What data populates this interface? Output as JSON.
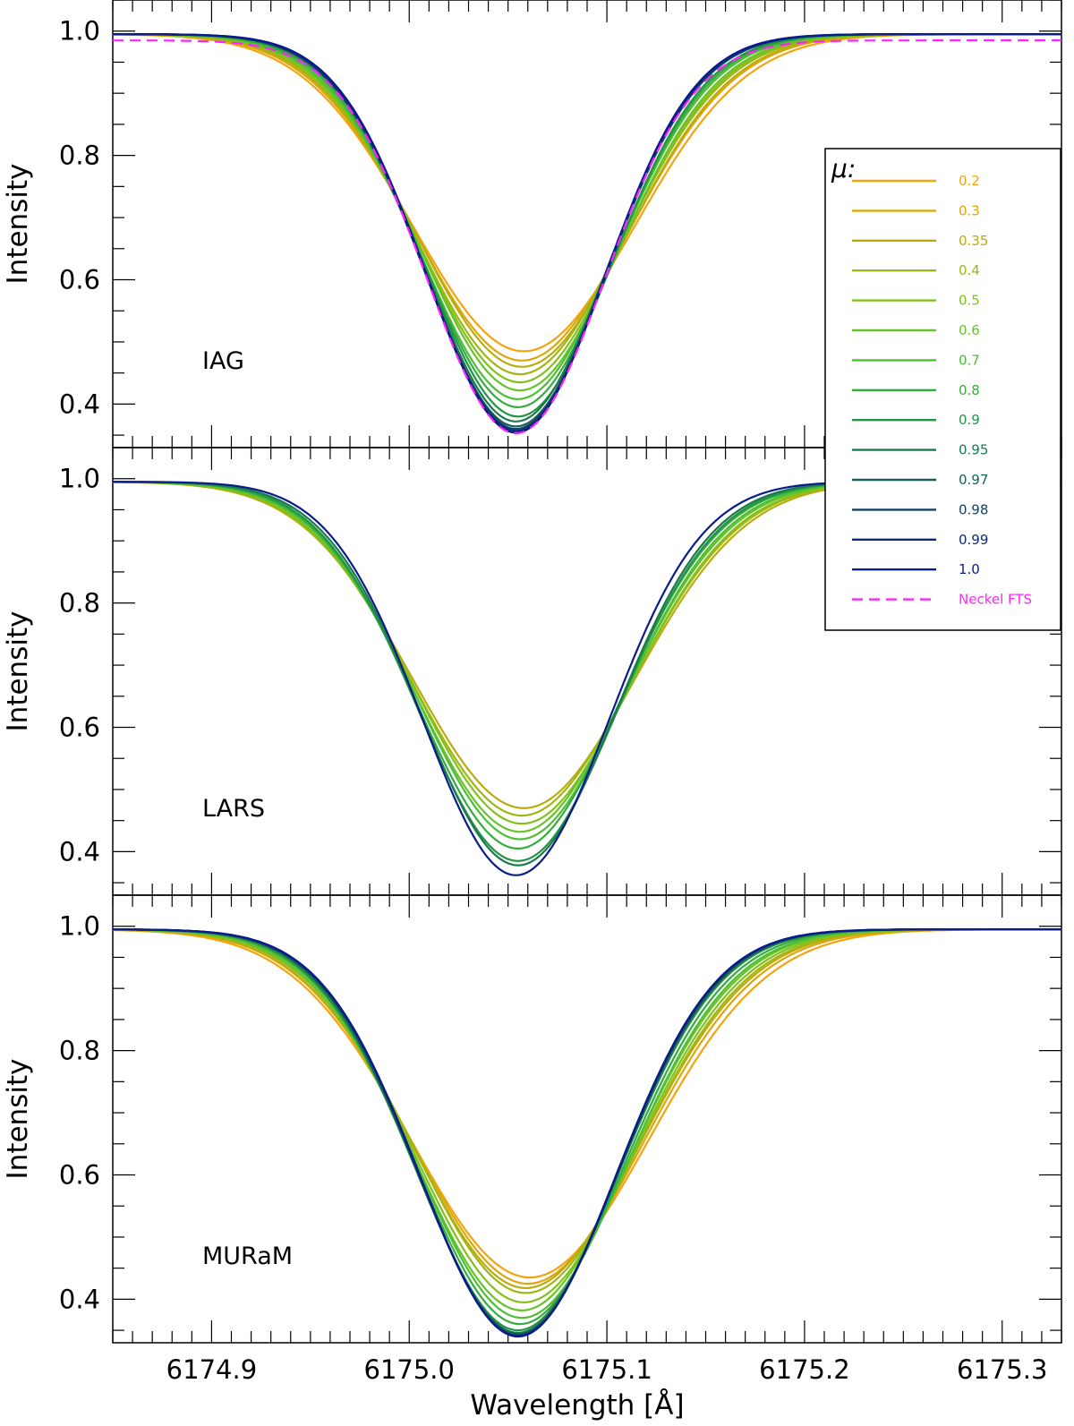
{
  "chart_data": {
    "type": "line",
    "xlabel": "Wavelength [Å]",
    "xlim": [
      6174.85,
      6175.33
    ],
    "x_ticks": [
      "6174.9",
      "6175.0",
      "6175.1",
      "6175.2",
      "6175.3"
    ],
    "legend": {
      "title": "μ:",
      "placement": "top-right",
      "entries": [
        {
          "label": "0.2",
          "color": "#f5a30f",
          "dashed": false
        },
        {
          "label": "0.3",
          "color": "#dca60c",
          "dashed": false
        },
        {
          "label": "0.35",
          "color": "#bcab0e",
          "dashed": false
        },
        {
          "label": "0.4",
          "color": "#9fb614",
          "dashed": false
        },
        {
          "label": "0.5",
          "color": "#83c01b",
          "dashed": false
        },
        {
          "label": "0.6",
          "color": "#66c428",
          "dashed": false
        },
        {
          "label": "0.7",
          "color": "#4cbf34",
          "dashed": false
        },
        {
          "label": "0.8",
          "color": "#35ac3c",
          "dashed": false
        },
        {
          "label": "0.9",
          "color": "#229445",
          "dashed": false
        },
        {
          "label": "0.95",
          "color": "#1a7b4d",
          "dashed": false
        },
        {
          "label": "0.97",
          "color": "#175f58",
          "dashed": false
        },
        {
          "label": "0.98",
          "color": "#134264",
          "dashed": false
        },
        {
          "label": "0.99",
          "color": "#0f2a79",
          "dashed": false
        },
        {
          "label": "1.0",
          "color": "#0a1b8c",
          "dashed": false
        },
        {
          "label": "Neckel FTS",
          "color": "#ff22ff",
          "dashed": true
        }
      ]
    },
    "panels": [
      {
        "name": "IAG",
        "label": "IAG",
        "ylabel": "Intensity",
        "ylim": [
          0.33,
          1.05
        ],
        "y_ticks": [
          "0.4",
          "0.6",
          "0.8",
          "1.0"
        ],
        "series": [
          {
            "name": "0.2",
            "core": 0.485,
            "center": 6175.058,
            "width": 0.056
          },
          {
            "name": "0.3",
            "core": 0.47,
            "center": 6175.057,
            "width": 0.054
          },
          {
            "name": "0.35",
            "core": 0.46,
            "center": 6175.057,
            "width": 0.053
          },
          {
            "name": "0.4",
            "core": 0.448,
            "center": 6175.056,
            "width": 0.052
          },
          {
            "name": "0.5",
            "core": 0.435,
            "center": 6175.056,
            "width": 0.051
          },
          {
            "name": "0.6",
            "core": 0.422,
            "center": 6175.056,
            "width": 0.05
          },
          {
            "name": "0.7",
            "core": 0.408,
            "center": 6175.055,
            "width": 0.049
          },
          {
            "name": "0.8",
            "core": 0.395,
            "center": 6175.055,
            "width": 0.048
          },
          {
            "name": "0.9",
            "core": 0.38,
            "center": 6175.055,
            "width": 0.047
          },
          {
            "name": "0.95",
            "core": 0.372,
            "center": 6175.054,
            "width": 0.046
          },
          {
            "name": "0.97",
            "core": 0.364,
            "center": 6175.054,
            "width": 0.046
          },
          {
            "name": "0.98",
            "core": 0.36,
            "center": 6175.054,
            "width": 0.0455
          },
          {
            "name": "0.99",
            "core": 0.357,
            "center": 6175.054,
            "width": 0.0455
          },
          {
            "name": "1.0",
            "core": 0.354,
            "center": 6175.054,
            "width": 0.045
          },
          {
            "name": "Neckel FTS",
            "core": 0.353,
            "center": 6175.054,
            "width": 0.045,
            "continuum": 0.985
          }
        ]
      },
      {
        "name": "LARS",
        "label": "LARS",
        "ylabel": "Intensity",
        "ylim": [
          0.33,
          1.05
        ],
        "y_ticks": [
          "0.4",
          "0.6",
          "0.8",
          "1.0"
        ],
        "series": [
          {
            "name": "0.35",
            "core": 0.47,
            "center": 6175.058,
            "width": 0.056
          },
          {
            "name": "0.4",
            "core": 0.458,
            "center": 6175.057,
            "width": 0.055
          },
          {
            "name": "0.5",
            "core": 0.445,
            "center": 6175.057,
            "width": 0.054
          },
          {
            "name": "0.6",
            "core": 0.432,
            "center": 6175.056,
            "width": 0.053
          },
          {
            "name": "0.7",
            "core": 0.42,
            "center": 6175.056,
            "width": 0.052
          },
          {
            "name": "0.8",
            "core": 0.405,
            "center": 6175.055,
            "width": 0.051
          },
          {
            "name": "0.9",
            "core": 0.385,
            "center": 6175.055,
            "width": 0.05
          },
          {
            "name": "0.95",
            "core": 0.378,
            "center": 6175.055,
            "width": 0.049
          },
          {
            "name": "1.0",
            "core": 0.362,
            "center": 6175.054,
            "width": 0.047
          }
        ]
      },
      {
        "name": "MURaM",
        "label": "MURaM",
        "ylabel": "Intensity",
        "ylim": [
          0.33,
          1.05
        ],
        "y_ticks": [
          "0.4",
          "0.6",
          "0.8",
          "1.0"
        ],
        "series": [
          {
            "name": "0.2",
            "core": 0.435,
            "center": 6175.061,
            "width": 0.06
          },
          {
            "name": "0.3",
            "core": 0.425,
            "center": 6175.06,
            "width": 0.058
          },
          {
            "name": "0.35",
            "core": 0.418,
            "center": 6175.059,
            "width": 0.057
          },
          {
            "name": "0.4",
            "core": 0.41,
            "center": 6175.059,
            "width": 0.056
          },
          {
            "name": "0.5",
            "core": 0.395,
            "center": 6175.058,
            "width": 0.055
          },
          {
            "name": "0.6",
            "core": 0.382,
            "center": 6175.057,
            "width": 0.054
          },
          {
            "name": "0.7",
            "core": 0.37,
            "center": 6175.057,
            "width": 0.053
          },
          {
            "name": "0.8",
            "core": 0.36,
            "center": 6175.056,
            "width": 0.052
          },
          {
            "name": "0.9",
            "core": 0.35,
            "center": 6175.055,
            "width": 0.051
          },
          {
            "name": "0.95",
            "core": 0.346,
            "center": 6175.055,
            "width": 0.0505
          },
          {
            "name": "0.97",
            "core": 0.344,
            "center": 6175.055,
            "width": 0.05
          },
          {
            "name": "0.98",
            "core": 0.342,
            "center": 6175.055,
            "width": 0.05
          },
          {
            "name": "0.99",
            "core": 0.341,
            "center": 6175.055,
            "width": 0.0495
          },
          {
            "name": "1.0",
            "core": 0.34,
            "center": 6175.055,
            "width": 0.0495
          }
        ]
      }
    ]
  }
}
